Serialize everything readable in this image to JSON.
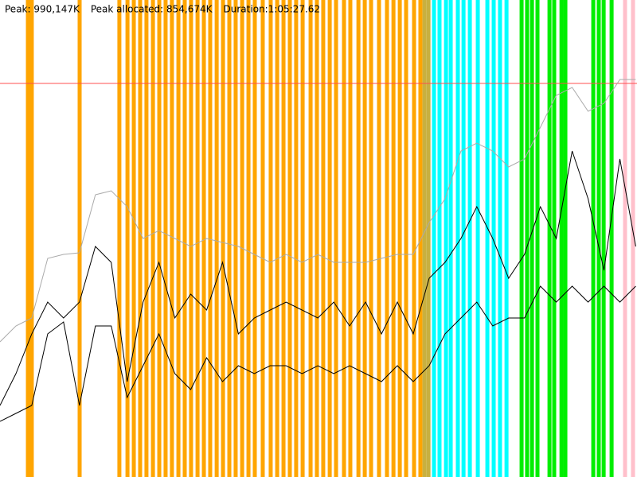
{
  "chart_data": {
    "type": "memory-timeline",
    "header": [
      "Peak: 990,147K",
      "Peak allocated: 854,674K",
      "Duration:1:05:27.62"
    ],
    "xlim": [
      0,
      3927.62
    ],
    "ylim": [
      0,
      1200000
    ],
    "peak_line": {
      "value": 990147,
      "color": "#ff4d4d"
    },
    "x": [
      0,
      98,
      196,
      294,
      392,
      490,
      588,
      686,
      784,
      882,
      980,
      1078,
      1176,
      1274,
      1372,
      1470,
      1568,
      1666,
      1764,
      1862,
      1960,
      2058,
      2156,
      2254,
      2352,
      2450,
      2548,
      2646,
      2744,
      2842,
      2940,
      3038,
      3136,
      3234,
      3332,
      3430,
      3528,
      3626,
      3724,
      3822,
      3920
    ],
    "series": [
      {
        "color": "#aaaaaa",
        "values": [
          340000,
          380000,
          400000,
          550000,
          560000,
          564000,
          710000,
          720000,
          680000,
          600000,
          620000,
          600000,
          580000,
          600000,
          590000,
          580000,
          560000,
          540000,
          560000,
          540000,
          560000,
          540000,
          540000,
          540000,
          550000,
          560000,
          560000,
          640000,
          700000,
          820000,
          840000,
          820000,
          780000,
          800000,
          880000,
          960000,
          980000,
          920000,
          940000,
          1000000,
          1000000
        ]
      },
      {
        "color": "#000000",
        "values": [
          180000,
          260000,
          360000,
          440000,
          400000,
          440000,
          580000,
          540000,
          240000,
          440000,
          540000,
          400000,
          460000,
          420000,
          540000,
          360000,
          400000,
          420000,
          440000,
          420000,
          400000,
          440000,
          380000,
          440000,
          360000,
          440000,
          360000,
          500000,
          540000,
          600000,
          680000,
          600000,
          500000,
          560000,
          680000,
          600000,
          820000,
          700000,
          520000,
          800000,
          580000
        ]
      },
      {
        "color": "#000000",
        "values": [
          140000,
          160000,
          180000,
          360000,
          390000,
          180000,
          380000,
          380000,
          200000,
          280000,
          360000,
          260000,
          220000,
          300000,
          240000,
          280000,
          260000,
          280000,
          280000,
          260000,
          280000,
          260000,
          280000,
          260000,
          240000,
          280000,
          240000,
          280000,
          360000,
          400000,
          440000,
          380000,
          400000,
          400000,
          480000,
          440000,
          480000,
          440000,
          480000,
          440000,
          480000
        ]
      }
    ],
    "events": [
      {
        "color": "#ffa500",
        "x": [
          172,
          196,
          491,
          736,
          786,
          825,
          864,
          903,
          943,
          982,
          1021,
          1060,
          1100,
          1139,
          1178,
          1218,
          1257,
          1296,
          1336,
          1375,
          1414,
          1453,
          1493,
          1532,
          1571,
          1620,
          1669,
          1709,
          1748,
          1787,
          1826,
          1866,
          1915,
          1954,
          1993,
          2033,
          2072,
          2121,
          2160,
          2210,
          2249,
          2288,
          2337,
          2386,
          2426,
          2465,
          2504,
          2553,
          2592
        ]
      },
      {
        "color": "#c8b040",
        "x": [
          2617,
          2642
        ]
      },
      {
        "color": "#00ffff",
        "x": [
          2676,
          2710,
          2750,
          2779,
          2823,
          2858,
          2897,
          2946,
          3005,
          3044,
          3083,
          3123
        ]
      },
      {
        "color": "#00ee00",
        "x": [
          3216,
          3250,
          3280,
          3314,
          3388,
          3417,
          3462,
          3486,
          3658,
          3692,
          3722,
          3771
        ]
      },
      {
        "color": "#ffc0cb",
        "x": [
          3854,
          3903
        ]
      }
    ]
  }
}
